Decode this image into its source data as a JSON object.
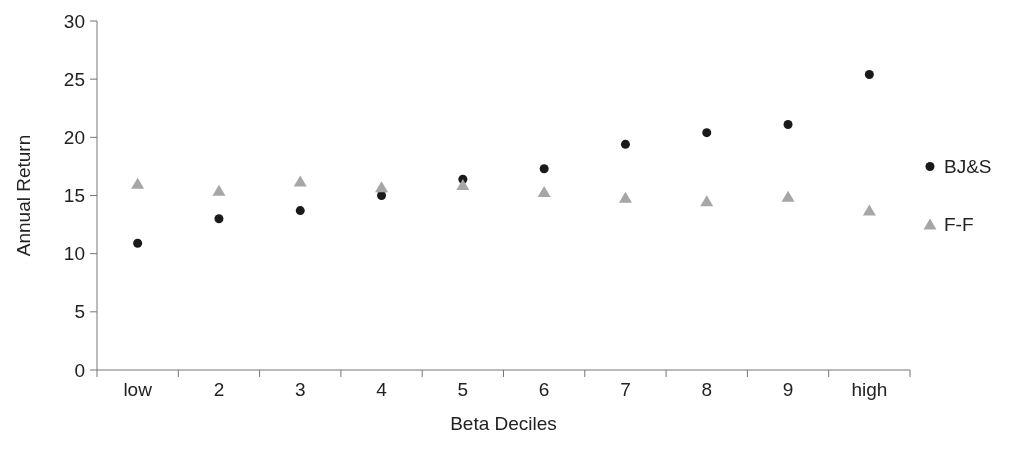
{
  "chart_data": {
    "type": "scatter",
    "xlabel": "Beta Deciles",
    "ylabel": "Annual Return",
    "categories": [
      "low",
      "2",
      "3",
      "4",
      "5",
      "6",
      "7",
      "8",
      "9",
      "high"
    ],
    "ylim": [
      0,
      30
    ],
    "yticks": [
      0,
      5,
      10,
      15,
      20,
      25,
      30
    ],
    "grid": false,
    "legend": "right",
    "series": [
      {
        "name": "BJ&S",
        "color": "#1a1a1a",
        "marker": "circle",
        "values": [
          10.9,
          13.0,
          13.7,
          15.0,
          16.4,
          17.3,
          19.4,
          20.4,
          21.1,
          25.4
        ]
      },
      {
        "name": "F-F",
        "color": "#a6a6a6",
        "marker": "triangle",
        "values": [
          16.0,
          15.4,
          16.2,
          15.7,
          15.9,
          15.3,
          14.8,
          14.5,
          14.9,
          13.7
        ]
      }
    ]
  }
}
